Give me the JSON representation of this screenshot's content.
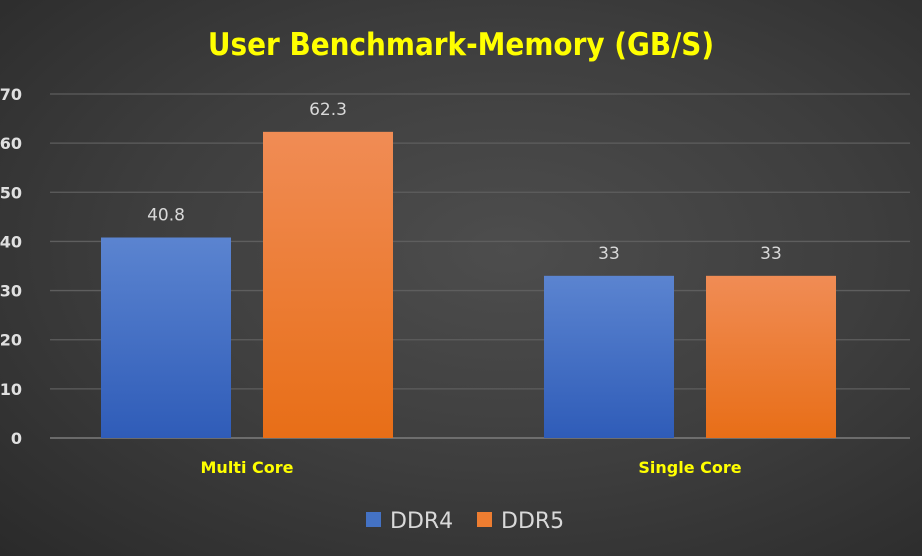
{
  "chart_data": {
    "type": "bar",
    "title": "User Benchmark-Memory (GB/S)",
    "categories": [
      "Multi Core",
      "Single Core"
    ],
    "series": [
      {
        "name": "DDR4",
        "values": [
          40.8,
          33
        ],
        "color": "#4472c4"
      },
      {
        "name": "DDR5",
        "values": [
          62.3,
          33
        ],
        "color": "#ed7d31"
      }
    ],
    "data_labels": [
      [
        "40.8",
        "33"
      ],
      [
        "62.3",
        "33"
      ]
    ],
    "yticks": [
      "0",
      "10",
      "20",
      "30",
      "40",
      "50",
      "60",
      "70"
    ],
    "ylim": [
      0,
      70
    ],
    "grid": true,
    "legend": "bottom",
    "xlabel": "",
    "ylabel": ""
  }
}
